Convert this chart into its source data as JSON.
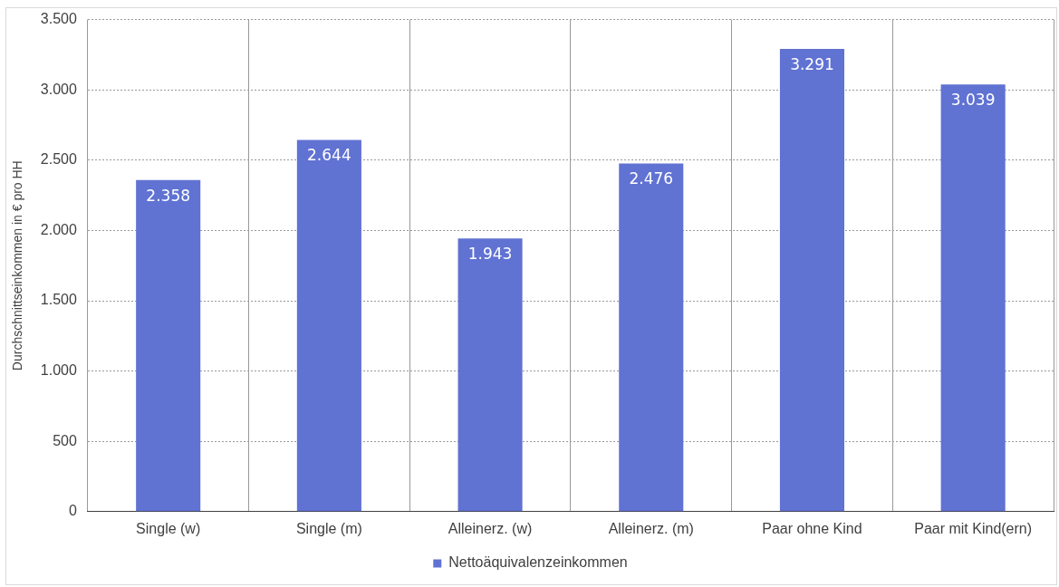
{
  "chart_data": {
    "type": "bar",
    "ylabel": "Durchschnittseinkommen in € pro HH",
    "categories": [
      "Single (w)",
      "Single (m)",
      "Alleinerz. (w)",
      "Alleinerz. (m)",
      "Paar ohne Kind",
      "Paar mit Kind(ern)"
    ],
    "series": [
      {
        "name": "Nettoäquivalenzeinkommen",
        "color": "#6072d2",
        "values": [
          2358,
          2644,
          1943,
          2476,
          3291,
          3039
        ],
        "value_labels": [
          "2.358",
          "2.644",
          "1.943",
          "2.476",
          "3.291",
          "3.039"
        ]
      }
    ],
    "ylim": [
      0,
      3500
    ],
    "yticks": [
      0,
      {
        "value": 500,
        "label": "500"
      },
      {
        "value": 1000,
        "label": "1.000"
      },
      {
        "value": 1500,
        "label": "1.500"
      },
      {
        "value": 2000,
        "label": "2.000"
      },
      {
        "value": 2500,
        "label": "2.500"
      },
      {
        "value": 3000,
        "label": "3.000"
      },
      {
        "value": 3500,
        "label": "3.500"
      }
    ],
    "grid": true,
    "legend": "bottom"
  }
}
